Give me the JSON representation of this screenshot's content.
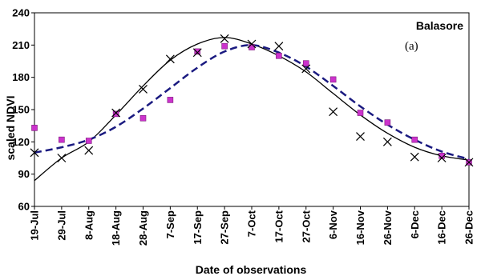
{
  "chart_data": {
    "type": "line",
    "title": "",
    "annotations": [
      "Balasore",
      "(a)"
    ],
    "xlabel": "Date of observations",
    "ylabel": "scaled NDVI",
    "ylim": [
      60,
      240
    ],
    "yticks": [
      60,
      90,
      120,
      150,
      180,
      210,
      240
    ],
    "grid": false,
    "legend": "none",
    "categories": [
      "19-Jul",
      "29-Jul",
      "8-Aug",
      "18-Aug",
      "28-Aug",
      "7-Sep",
      "17-Sep",
      "27-Sep",
      "7-Oct",
      "17-Oct",
      "27-Oct",
      "6-Nov",
      "16-Nov",
      "26-Nov",
      "6-Dec",
      "16-Dec",
      "26-Dec"
    ],
    "series": [
      {
        "style": "markers",
        "marker": "square",
        "color": "#cc33cc",
        "values": [
          133,
          122,
          121,
          146,
          142,
          159,
          204,
          209,
          208,
          200,
          193,
          178,
          147,
          138,
          122,
          107,
          101
        ]
      },
      {
        "style": "markers",
        "marker": "x",
        "color": "#000000",
        "values": [
          110,
          105,
          112,
          147,
          169,
          197,
          203,
          216,
          211,
          209,
          188,
          148,
          125,
          120,
          106,
          105,
          101
        ]
      },
      {
        "style": "line",
        "dash": "solid",
        "color": "#000000",
        "values": [
          84,
          105,
          120,
          145,
          172,
          196,
          211,
          217,
          211,
          200,
          185,
          165,
          145,
          128,
          115,
          107,
          103
        ]
      },
      {
        "style": "line",
        "dash": "dashed",
        "color": "#1a1a80",
        "values": [
          110,
          115,
          122,
          134,
          151,
          170,
          189,
          204,
          210,
          203,
          190,
          172,
          153,
          136,
          122,
          111,
          104
        ]
      }
    ]
  }
}
